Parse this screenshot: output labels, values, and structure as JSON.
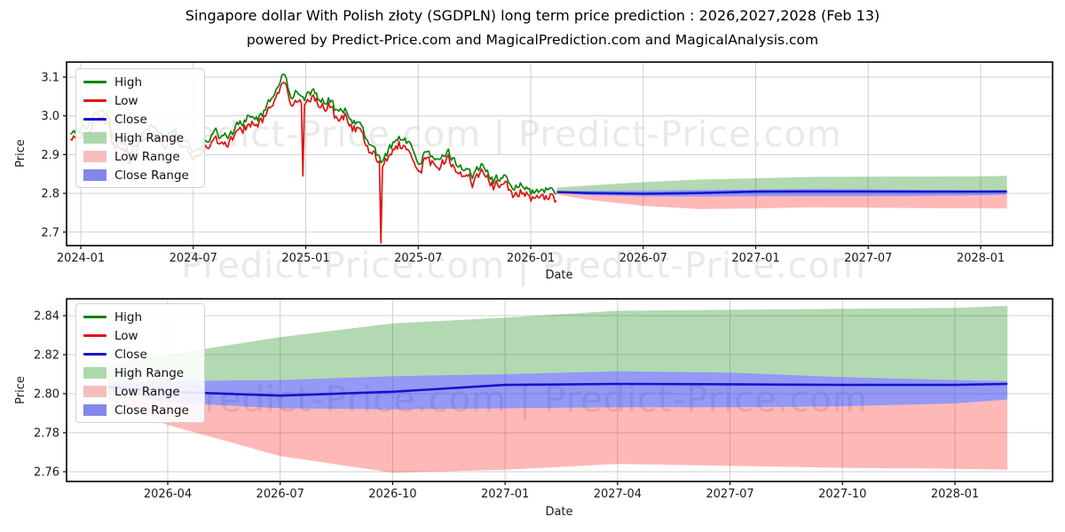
{
  "title": "Singapore dollar With Polish złoty (SGDPLN) long term price prediction : 2026,2027,2028 (Feb 13)",
  "subtitle": "powered by Predict-Price.com and MagicalPrediction.com and MagicalAnalysis.com",
  "watermark": {
    "text": "Predict-Price.com   |   Predict-Price.com"
  },
  "colors": {
    "high_line": "#0b840b",
    "low_line": "#e11212",
    "close_line": "#1414cf",
    "high_range_fill": "rgba(0,128,0,0.30)",
    "low_range_fill": "rgba(255,20,20,0.30)",
    "close_range_fill": "rgba(50,60,235,0.52)",
    "high_range_swatch": "#aed7ae",
    "low_range_swatch": "#f7bdbd",
    "close_range_swatch": "#8287ec",
    "grid": "#cfcfcf",
    "spine": "#000000",
    "tick_text": "#1a1a1a"
  },
  "legend": [
    {
      "label": "High",
      "swatch": "line",
      "color_key": "high_line"
    },
    {
      "label": "Low",
      "swatch": "line",
      "color_key": "low_line"
    },
    {
      "label": "Close",
      "swatch": "line",
      "color_key": "close_line"
    },
    {
      "label": "High Range",
      "swatch": "patch",
      "color_key": "high_range_swatch"
    },
    {
      "label": "Low Range",
      "swatch": "patch",
      "color_key": "low_range_swatch"
    },
    {
      "label": "Close Range",
      "swatch": "patch",
      "color_key": "close_range_swatch"
    }
  ],
  "chart_data": [
    {
      "type": "line",
      "name": "full-history-and-forecast",
      "xlabel": "Date",
      "ylabel": "Price",
      "ylim": [
        2.665,
        3.139
      ],
      "x_ticks": [
        {
          "t": 0,
          "label": "2024-01"
        },
        {
          "t": 6,
          "label": "2024-07"
        },
        {
          "t": 12,
          "label": "2025-01"
        },
        {
          "t": 18,
          "label": "2025-07"
        },
        {
          "t": 24,
          "label": "2026-01"
        },
        {
          "t": 30,
          "label": "2026-07"
        },
        {
          "t": 36,
          "label": "2027-01"
        },
        {
          "t": 42,
          "label": "2027-07"
        },
        {
          "t": 48,
          "label": "2028-01"
        }
      ],
      "y_ticks": [
        {
          "v": 3.1,
          "label": "3.1"
        },
        {
          "v": 3.0,
          "label": "3.0"
        },
        {
          "v": 2.9,
          "label": "2.9"
        },
        {
          "v": 2.8,
          "label": "2.8"
        },
        {
          "v": 2.7,
          "label": "2.7"
        }
      ],
      "historical": {
        "note": "t is months since 2024-01-01; high anchors of the daily High line; Low runs 0.012-0.022 below High",
        "high_anchors": [
          [
            -0.55,
            2.952
          ],
          [
            0,
            2.96
          ],
          [
            0.5,
            2.985
          ],
          [
            1.2,
            3.035
          ],
          [
            1.7,
            2.955
          ],
          [
            2.3,
            2.925
          ],
          [
            2.6,
            2.905
          ],
          [
            3.2,
            2.945
          ],
          [
            3.8,
            2.975
          ],
          [
            4.4,
            2.945
          ],
          [
            5.0,
            2.965
          ],
          [
            5.6,
            2.925
          ],
          [
            6.1,
            2.905
          ],
          [
            6.7,
            2.94
          ],
          [
            7.2,
            2.955
          ],
          [
            7.6,
            2.935
          ],
          [
            8.3,
            2.97
          ],
          [
            9.0,
            3.005
          ],
          [
            9.4,
            2.985
          ],
          [
            10.0,
            3.03
          ],
          [
            10.5,
            3.06
          ],
          [
            10.85,
            3.11
          ],
          [
            11.2,
            3.05
          ],
          [
            11.6,
            3.07
          ],
          [
            12.0,
            3.045
          ],
          [
            12.4,
            3.065
          ],
          [
            12.8,
            3.03
          ],
          [
            13.2,
            3.05
          ],
          [
            13.7,
            3.0
          ],
          [
            14.2,
            3.01
          ],
          [
            14.9,
            2.975
          ],
          [
            15.6,
            2.905
          ],
          [
            16.0,
            2.885
          ],
          [
            16.4,
            2.91
          ],
          [
            17.0,
            2.95
          ],
          [
            17.5,
            2.92
          ],
          [
            18.0,
            2.89
          ],
          [
            18.5,
            2.915
          ],
          [
            19.0,
            2.88
          ],
          [
            19.6,
            2.905
          ],
          [
            20.2,
            2.86
          ],
          [
            21.0,
            2.85
          ],
          [
            21.5,
            2.868
          ],
          [
            22.0,
            2.832
          ],
          [
            22.5,
            2.848
          ],
          [
            23.0,
            2.82
          ],
          [
            23.5,
            2.833
          ],
          [
            24.0,
            2.802
          ],
          [
            24.6,
            2.818
          ],
          [
            25.0,
            2.805
          ],
          [
            25.4,
            2.812
          ]
        ],
        "low_spikes": [
          [
            11.85,
            2.845
          ],
          [
            16.0,
            2.672
          ]
        ]
      },
      "forecast": {
        "t": [
          25.4,
          27,
          30,
          33,
          36,
          39,
          42,
          45,
          48,
          49.4
        ],
        "dates": [
          "2026-02-13",
          "2026-04",
          "2026-07",
          "2026-10",
          "2027-01",
          "2027-04",
          "2027-07",
          "2027-10",
          "2028-01",
          "2028-02-13"
        ],
        "close": [
          2.8035,
          2.801,
          2.799,
          2.801,
          2.8045,
          2.805,
          2.8048,
          2.8045,
          2.8045,
          2.805
        ],
        "close_upper": [
          2.8055,
          2.8065,
          2.807,
          2.809,
          2.81,
          2.8115,
          2.8108,
          2.8085,
          2.807,
          2.8064
        ],
        "close_lower": [
          2.8015,
          2.7955,
          2.7925,
          2.792,
          2.7925,
          2.793,
          2.793,
          2.7935,
          2.795,
          2.797
        ],
        "high_top": [
          2.815,
          2.82,
          2.829,
          2.836,
          2.839,
          2.8425,
          2.843,
          2.8435,
          2.844,
          2.845
        ],
        "low_bottom": [
          2.797,
          2.784,
          2.768,
          2.7595,
          2.761,
          2.764,
          2.763,
          2.762,
          2.7615,
          2.761
        ]
      }
    },
    {
      "type": "area",
      "name": "forecast-zoom",
      "xlabel": "Date",
      "ylabel": "Price",
      "ylim": [
        2.755,
        2.8486
      ],
      "x_ticks": [
        {
          "t": 27,
          "label": "2026-04"
        },
        {
          "t": 30,
          "label": "2026-07"
        },
        {
          "t": 33,
          "label": "2026-10"
        },
        {
          "t": 36,
          "label": "2027-01"
        },
        {
          "t": 39,
          "label": "2027-04"
        },
        {
          "t": 42,
          "label": "2027-07"
        },
        {
          "t": 45,
          "label": "2027-10"
        },
        {
          "t": 48,
          "label": "2028-01"
        }
      ],
      "y_ticks": [
        {
          "v": 2.84,
          "label": "2.84"
        },
        {
          "v": 2.82,
          "label": "2.82"
        },
        {
          "v": 2.8,
          "label": "2.80"
        },
        {
          "v": 2.78,
          "label": "2.78"
        },
        {
          "v": 2.76,
          "label": "2.76"
        }
      ],
      "forecast": {
        "t": [
          25.4,
          27,
          30,
          33,
          36,
          39,
          42,
          45,
          48,
          49.4
        ],
        "dates": [
          "2026-02-13",
          "2026-04",
          "2026-07",
          "2026-10",
          "2027-01",
          "2027-04",
          "2027-07",
          "2027-10",
          "2028-01",
          "2028-02-13"
        ],
        "close": [
          2.8035,
          2.801,
          2.799,
          2.801,
          2.8045,
          2.805,
          2.8048,
          2.8045,
          2.8045,
          2.805
        ],
        "close_upper": [
          2.8055,
          2.8065,
          2.807,
          2.809,
          2.81,
          2.8115,
          2.8108,
          2.8085,
          2.807,
          2.8064
        ],
        "close_lower": [
          2.8015,
          2.7955,
          2.7925,
          2.792,
          2.7925,
          2.793,
          2.793,
          2.7935,
          2.795,
          2.797
        ],
        "high_top": [
          2.815,
          2.82,
          2.829,
          2.836,
          2.839,
          2.8425,
          2.843,
          2.8435,
          2.844,
          2.845
        ],
        "low_bottom": [
          2.797,
          2.784,
          2.768,
          2.7595,
          2.761,
          2.764,
          2.763,
          2.762,
          2.7615,
          2.761
        ]
      }
    }
  ]
}
